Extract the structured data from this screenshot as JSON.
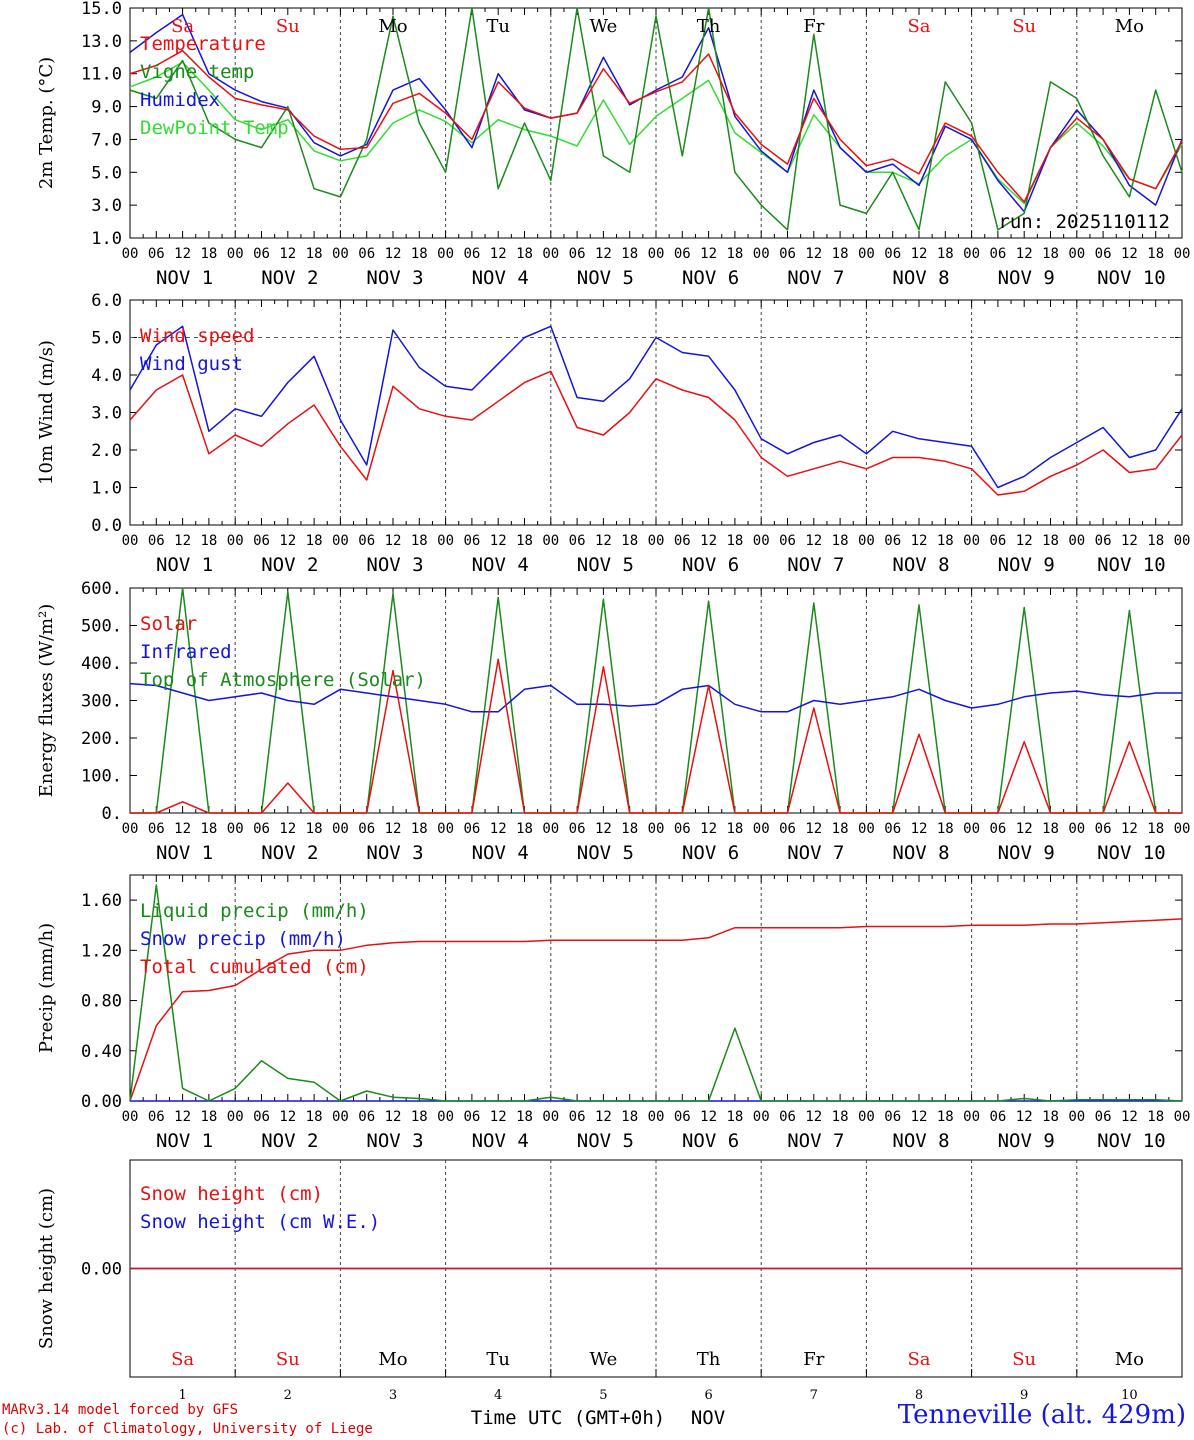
{
  "footer": {
    "credit_line1": "MARv3.14 model forced by GFS",
    "credit_line2": "(c) Lab. of Climatology, University of Liege",
    "station": "Tenneville (alt. 429m)",
    "time_axis_label": "Time UTC (GMT+0h)",
    "month_label": "NOV"
  },
  "colors": {
    "red": "#e81010",
    "blue": "#1414e0",
    "green": "#1a8a1a",
    "light_green": "#33dd33",
    "weekend": "#e81010",
    "weekday": "#000000"
  },
  "axis": {
    "hour_ticks": [
      "00",
      "06",
      "12",
      "18"
    ],
    "day_labels": [
      "NOV  1",
      "NOV  2",
      "NOV  3",
      "NOV  4",
      "NOV  5",
      "NOV  6",
      "NOV  7",
      "NOV  8",
      "NOV  9",
      "NOV 10"
    ],
    "weekdays": [
      {
        "label": "Sa",
        "weekend": true
      },
      {
        "label": "Su",
        "weekend": true
      },
      {
        "label": "Mo",
        "weekend": false
      },
      {
        "label": "Tu",
        "weekend": false
      },
      {
        "label": "We",
        "weekend": false
      },
      {
        "label": "Th",
        "weekend": false
      },
      {
        "label": "Fr",
        "weekend": false
      },
      {
        "label": "Sa",
        "weekend": true
      },
      {
        "label": "Su",
        "weekend": true
      },
      {
        "label": "Mo",
        "weekend": false
      }
    ],
    "bottom_day_numbers": [
      "1",
      "2",
      "3",
      "4",
      "5",
      "6",
      "7",
      "8",
      "9",
      "10"
    ]
  },
  "chart_data": [
    {
      "type": "line",
      "ylabel": "2m Temp. (°C)",
      "ylim": [
        1.0,
        15.0
      ],
      "yticks": [
        "1.0",
        "3.0",
        "5.0",
        "7.0",
        "9.0",
        "11.0",
        "13.0",
        "15.0"
      ],
      "annotation": "run: 2025110112",
      "x_hours": [
        0,
        6,
        12,
        18,
        24,
        30,
        36,
        42,
        48,
        54,
        60,
        66,
        72,
        78,
        84,
        90,
        96,
        102,
        108,
        114,
        120,
        126,
        132,
        138,
        144,
        150,
        156,
        162,
        168,
        174,
        180,
        186,
        192,
        198,
        204,
        210,
        216,
        222,
        228,
        234,
        240
      ],
      "series": [
        {
          "name": "Temperature",
          "color": "red",
          "values": [
            11.0,
            11.5,
            12.4,
            10.8,
            9.5,
            9.1,
            8.8,
            7.2,
            6.4,
            6.5,
            9.2,
            9.8,
            8.6,
            7.0,
            10.5,
            8.9,
            8.3,
            8.6,
            11.3,
            9.2,
            9.9,
            10.5,
            12.2,
            8.6,
            6.7,
            5.5,
            9.5,
            7.0,
            5.4,
            5.8,
            4.9,
            8.0,
            7.2,
            5.0,
            3.2,
            6.5,
            8.3,
            7.0,
            4.6,
            4.0,
            6.9
          ]
        },
        {
          "name": "Vigne temp",
          "color": "green",
          "values": [
            10.0,
            9.5,
            11.8,
            8.0,
            7.0,
            6.5,
            9.0,
            4.0,
            3.5,
            7.0,
            14.5,
            8.0,
            5.0,
            15.0,
            4.0,
            8.0,
            4.5,
            15.0,
            6.0,
            5.0,
            14.5,
            6.0,
            15.0,
            5.0,
            3.0,
            1.5,
            13.4,
            3.0,
            2.5,
            5.0,
            1.5,
            10.5,
            8.0,
            1.5,
            2.5,
            10.5,
            9.5,
            6.0,
            3.5,
            10.0,
            5.0
          ]
        },
        {
          "name": "Humidex",
          "color": "blue",
          "values": [
            12.3,
            13.5,
            14.6,
            11.0,
            10.0,
            9.3,
            8.9,
            6.8,
            6.0,
            6.7,
            10.0,
            10.7,
            8.8,
            6.5,
            11.0,
            8.8,
            8.3,
            8.6,
            12.0,
            9.1,
            10.0,
            10.8,
            13.8,
            8.4,
            6.3,
            5.0,
            10.0,
            6.5,
            5.0,
            5.5,
            4.2,
            7.8,
            7.0,
            4.5,
            2.6,
            6.5,
            8.8,
            7.0,
            4.2,
            3.0,
            7.0
          ]
        },
        {
          "name": "DewPoint Temp",
          "color": "light_green",
          "values": [
            10.2,
            10.8,
            11.7,
            10.0,
            8.2,
            7.6,
            8.2,
            6.3,
            5.7,
            6.0,
            8.0,
            8.8,
            8.1,
            6.8,
            8.2,
            7.6,
            7.2,
            6.6,
            9.4,
            6.7,
            8.4,
            9.5,
            10.6,
            7.4,
            6.2,
            5.0,
            8.5,
            6.5,
            5.0,
            5.0,
            4.3,
            6.0,
            7.0,
            4.6,
            3.1,
            6.5,
            8.0,
            6.6,
            4.6,
            4.0,
            6.7
          ]
        }
      ]
    },
    {
      "type": "line",
      "ylabel": "10m Wind (m/s)",
      "ylim": [
        0.0,
        6.0
      ],
      "yticks": [
        "0.0",
        "1.0",
        "2.0",
        "3.0",
        "4.0",
        "5.0",
        "6.0"
      ],
      "dashed_reference": 5.0,
      "x_hours": [
        0,
        6,
        12,
        18,
        24,
        30,
        36,
        42,
        48,
        54,
        60,
        66,
        72,
        78,
        84,
        90,
        96,
        102,
        108,
        114,
        120,
        126,
        132,
        138,
        144,
        150,
        156,
        162,
        168,
        174,
        180,
        186,
        192,
        198,
        204,
        210,
        216,
        222,
        228,
        234,
        240
      ],
      "series": [
        {
          "name": "Wind speed",
          "color": "red",
          "values": [
            2.8,
            3.6,
            4.0,
            1.9,
            2.4,
            2.1,
            2.7,
            3.2,
            2.1,
            1.2,
            3.7,
            3.1,
            2.9,
            2.8,
            3.3,
            3.8,
            4.1,
            2.6,
            2.4,
            3.0,
            3.9,
            3.6,
            3.4,
            2.8,
            1.8,
            1.3,
            1.5,
            1.7,
            1.5,
            1.8,
            1.8,
            1.7,
            1.5,
            0.8,
            0.9,
            1.3,
            1.6,
            2.0,
            1.4,
            1.5,
            2.4
          ]
        },
        {
          "name": "Wind gust",
          "color": "blue",
          "values": [
            3.6,
            4.8,
            5.3,
            2.5,
            3.1,
            2.9,
            3.8,
            4.5,
            2.8,
            1.6,
            5.2,
            4.2,
            3.7,
            3.6,
            4.3,
            5.0,
            5.3,
            3.4,
            3.3,
            3.9,
            5.0,
            4.6,
            4.5,
            3.6,
            2.3,
            1.9,
            2.2,
            2.4,
            1.9,
            2.5,
            2.3,
            2.2,
            2.1,
            1.0,
            1.3,
            1.8,
            2.2,
            2.6,
            1.8,
            2.0,
            3.1
          ]
        }
      ]
    },
    {
      "type": "line",
      "ylabel": "Energy fluxes (W/m²)",
      "ylim": [
        0,
        600
      ],
      "yticks": [
        "0.",
        "100.",
        "200.",
        "300.",
        "400.",
        "500.",
        "600."
      ],
      "x_hours": [
        0,
        6,
        12,
        18,
        24,
        30,
        36,
        42,
        48,
        54,
        60,
        66,
        72,
        78,
        84,
        90,
        96,
        102,
        108,
        114,
        120,
        126,
        132,
        138,
        144,
        150,
        156,
        162,
        168,
        174,
        180,
        186,
        192,
        198,
        204,
        210,
        216,
        222,
        228,
        234,
        240
      ],
      "series": [
        {
          "name": "Solar",
          "color": "red",
          "values": [
            0,
            0,
            30,
            0,
            0,
            0,
            80,
            0,
            0,
            0,
            380,
            0,
            0,
            0,
            410,
            0,
            0,
            0,
            390,
            0,
            0,
            0,
            340,
            0,
            0,
            0,
            280,
            0,
            0,
            0,
            210,
            0,
            0,
            0,
            190,
            0,
            0,
            0,
            190,
            0,
            0
          ]
        },
        {
          "name": "Infrared",
          "color": "blue",
          "values": [
            345,
            340,
            320,
            300,
            310,
            320,
            300,
            290,
            330,
            320,
            310,
            300,
            290,
            270,
            270,
            330,
            340,
            290,
            290,
            285,
            290,
            330,
            340,
            290,
            270,
            270,
            300,
            290,
            300,
            310,
            330,
            300,
            280,
            290,
            310,
            320,
            325,
            315,
            310,
            320,
            320
          ]
        },
        {
          "name": "Top of Atmosphere (Solar)",
          "color": "green",
          "values": [
            0,
            0,
            600,
            0,
            0,
            0,
            590,
            0,
            0,
            0,
            585,
            0,
            0,
            0,
            575,
            0,
            0,
            0,
            570,
            0,
            0,
            0,
            565,
            0,
            0,
            0,
            560,
            0,
            0,
            0,
            555,
            0,
            0,
            0,
            548,
            0,
            0,
            0,
            540,
            0,
            0
          ]
        }
      ]
    },
    {
      "type": "line",
      "ylabel": "Precip (mm/h)",
      "ylim": [
        0.0,
        1.8
      ],
      "yticks": [
        "0.00",
        "0.40",
        "0.80",
        "1.20",
        "1.60"
      ],
      "x_hours": [
        0,
        6,
        12,
        18,
        24,
        30,
        36,
        42,
        48,
        54,
        60,
        66,
        72,
        78,
        84,
        90,
        96,
        102,
        108,
        114,
        120,
        126,
        132,
        138,
        144,
        150,
        156,
        162,
        168,
        174,
        180,
        186,
        192,
        198,
        204,
        210,
        216,
        222,
        228,
        234,
        240
      ],
      "series": [
        {
          "name": "Liquid precip (mm/h)",
          "color": "green",
          "values": [
            0.0,
            1.72,
            0.1,
            0.0,
            0.1,
            0.32,
            0.18,
            0.15,
            0.0,
            0.08,
            0.03,
            0.02,
            0.0,
            0.0,
            0.0,
            0.0,
            0.03,
            0.0,
            0.0,
            0.0,
            0.0,
            0.0,
            0.0,
            0.58,
            0.0,
            0.0,
            0.0,
            0.0,
            0.0,
            0.0,
            0.0,
            0.0,
            0.0,
            0.0,
            0.02,
            0.0,
            0.01,
            0.01,
            0.01,
            0.01,
            0.0
          ]
        },
        {
          "name": "Snow precip (mm/h)",
          "color": "blue",
          "values": [
            0,
            0,
            0,
            0,
            0,
            0,
            0,
            0,
            0,
            0,
            0,
            0,
            0,
            0,
            0,
            0,
            0,
            0,
            0,
            0,
            0,
            0,
            0,
            0,
            0,
            0,
            0,
            0,
            0,
            0,
            0,
            0,
            0,
            0,
            0,
            0,
            0,
            0,
            0,
            0,
            0
          ]
        },
        {
          "name": "Total cumulated (cm)",
          "color": "red",
          "values": [
            0.0,
            0.6,
            0.87,
            0.88,
            0.92,
            1.05,
            1.17,
            1.2,
            1.2,
            1.24,
            1.26,
            1.27,
            1.27,
            1.27,
            1.27,
            1.27,
            1.28,
            1.28,
            1.28,
            1.28,
            1.28,
            1.28,
            1.3,
            1.38,
            1.38,
            1.38,
            1.38,
            1.38,
            1.39,
            1.39,
            1.39,
            1.39,
            1.4,
            1.4,
            1.4,
            1.41,
            1.41,
            1.42,
            1.43,
            1.44,
            1.45
          ]
        }
      ]
    },
    {
      "type": "line",
      "ylabel": "Snow height (cm)",
      "ylim": [
        -1.0,
        1.0
      ],
      "yticks": [
        "0.00"
      ],
      "x_hours": [
        0,
        240
      ],
      "series": [
        {
          "name": "Snow height (cm)",
          "color": "red",
          "values": [
            0.0,
            0.0
          ]
        },
        {
          "name": "Snow height (cm W.E.)",
          "color": "blue",
          "values": [
            0.0,
            0.0
          ]
        }
      ]
    }
  ]
}
